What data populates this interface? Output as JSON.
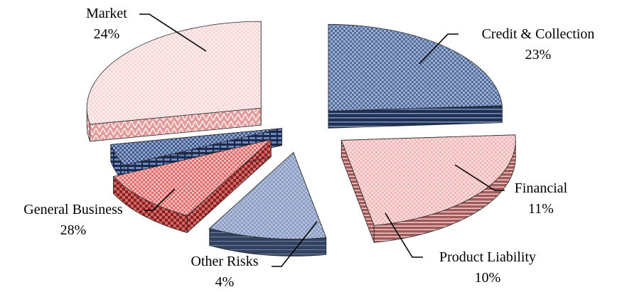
{
  "chart_data": {
    "type": "pie",
    "three_d": true,
    "exploded": true,
    "title": "",
    "categories": [
      "Market",
      "Credit & Collection",
      "Financial",
      "Product Liability",
      "Other Risks",
      "General Business"
    ],
    "values": [
      24,
      23,
      11,
      10,
      4,
      28
    ],
    "value_labels": [
      "24%",
      "23%",
      "11%",
      "10%",
      "4%",
      "28%"
    ],
    "legend": "none",
    "colors": {
      "market_top": "#4f6b9f",
      "market_side": "#1f3050",
      "credit_top": "#f2b8b8",
      "credit_side": "#a05a5a",
      "financial_top": "#8b9dc4",
      "financial_side": "#33425f",
      "product_top": "#e26b6b",
      "product_side": "#8e1f1f",
      "other_top": "#3d5a94",
      "other_side": "#1b2a4a",
      "general_top": "#f6d6d6",
      "general_side": "#e29c9c"
    }
  }
}
